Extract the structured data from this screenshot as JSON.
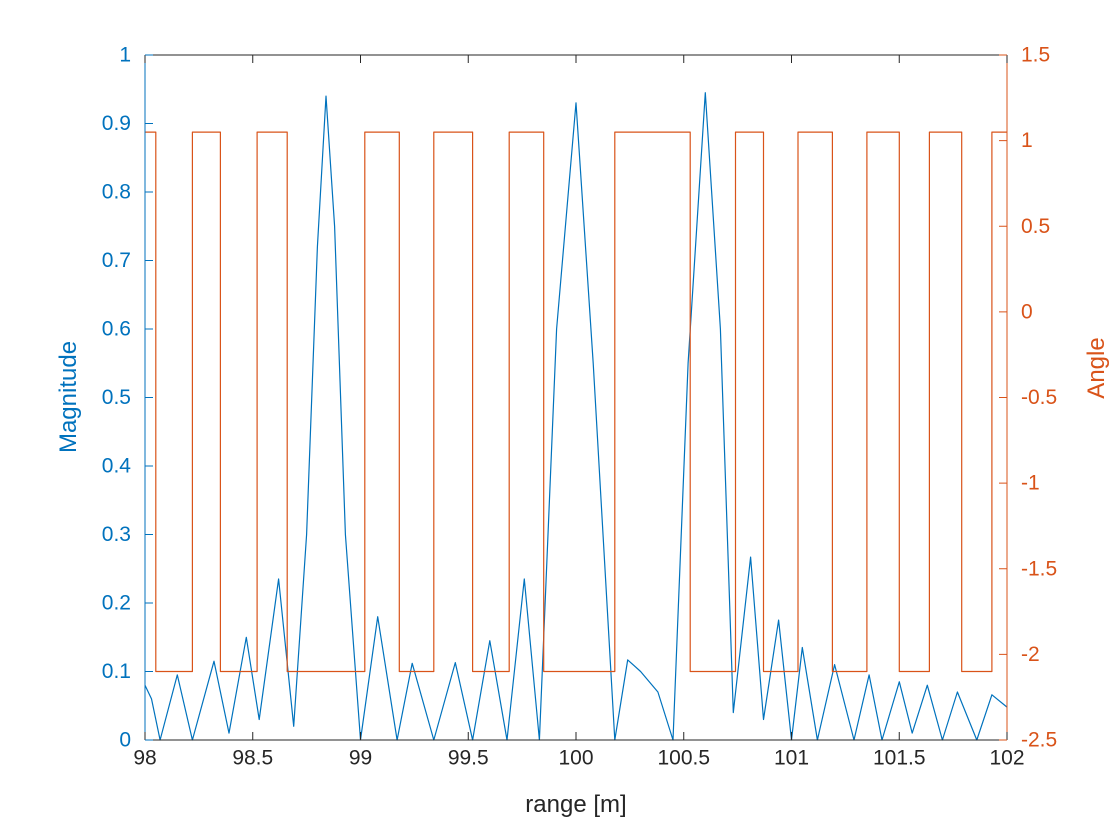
{
  "chart_data": {
    "type": "line",
    "title": "",
    "xlabel": "range [m]",
    "ylabel_left": "Magnitude",
    "ylabel_right": "Angle",
    "xlim": [
      98,
      102
    ],
    "ylim_left": [
      0,
      1
    ],
    "ylim_right": [
      -2.5,
      1.5
    ],
    "grid": false,
    "legend": "none",
    "x_ticks": [
      "98",
      "98.5",
      "99",
      "99.5",
      "100",
      "100.5",
      "101",
      "101.5",
      "102"
    ],
    "y_left_ticks": [
      "0",
      "0.1",
      "0.2",
      "0.3",
      "0.4",
      "0.5",
      "0.6",
      "0.7",
      "0.8",
      "0.9",
      "1"
    ],
    "y_right_ticks": [
      "-2.5",
      "-2",
      "-1.5",
      "-1",
      "-0.5",
      "0",
      "0.5",
      "1",
      "1.5"
    ],
    "colors": {
      "magnitude": "#0072BD",
      "angle": "#D95319",
      "axis": "#262626"
    },
    "series": [
      {
        "axis": "left",
        "color": "#0072BD",
        "x": [
          98.0,
          98.03,
          98.07,
          98.15,
          98.22,
          98.32,
          98.39,
          98.47,
          98.53,
          98.62,
          98.69,
          98.75,
          98.8,
          98.84,
          98.88,
          98.93,
          99.0,
          99.08,
          99.17,
          99.24,
          99.34,
          99.44,
          99.52,
          99.6,
          99.68,
          99.76,
          99.83,
          99.91,
          100.0,
          100.08,
          100.18,
          100.24,
          100.3,
          100.38,
          100.45,
          100.52,
          100.6,
          100.67,
          100.73,
          100.81,
          100.87,
          100.94,
          101.0,
          101.05,
          101.12,
          101.2,
          101.29,
          101.36,
          101.42,
          101.5,
          101.56,
          101.63,
          101.7,
          101.77,
          101.86,
          101.93,
          102.0
        ],
        "y": [
          0.08,
          0.06,
          0.0,
          0.095,
          0.0,
          0.115,
          0.01,
          0.15,
          0.03,
          0.235,
          0.02,
          0.3,
          0.72,
          0.94,
          0.75,
          0.3,
          0.0,
          0.18,
          0.0,
          0.112,
          0.0,
          0.113,
          0.0,
          0.145,
          0.0,
          0.235,
          0.0,
          0.6,
          0.93,
          0.55,
          0.0,
          0.117,
          0.1,
          0.07,
          0.0,
          0.55,
          0.945,
          0.6,
          0.04,
          0.267,
          0.03,
          0.175,
          0.0,
          0.135,
          0.0,
          0.11,
          0.0,
          0.095,
          0.0,
          0.085,
          0.01,
          0.08,
          0.0,
          0.07,
          0.0,
          0.066,
          0.048
        ]
      },
      {
        "axis": "right",
        "color": "#D95319",
        "x": [
          98.0,
          98.05,
          98.05,
          98.22,
          98.22,
          98.35,
          98.35,
          98.52,
          98.52,
          98.66,
          98.66,
          99.02,
          99.02,
          99.18,
          99.18,
          99.34,
          99.34,
          99.52,
          99.52,
          99.69,
          99.69,
          99.85,
          99.85,
          100.18,
          100.18,
          100.53,
          100.53,
          100.74,
          100.74,
          100.87,
          100.87,
          101.03,
          101.03,
          101.19,
          101.19,
          101.35,
          101.35,
          101.5,
          101.5,
          101.64,
          101.64,
          101.79,
          101.79,
          101.93,
          101.93,
          102.0
        ],
        "y": [
          1.05,
          1.05,
          -2.1,
          -2.1,
          1.05,
          1.05,
          -2.1,
          -2.1,
          1.05,
          1.05,
          -2.1,
          -2.1,
          1.05,
          1.05,
          -2.1,
          -2.1,
          1.05,
          1.05,
          -2.1,
          -2.1,
          1.05,
          1.05,
          -2.1,
          -2.1,
          1.05,
          1.05,
          -2.1,
          -2.1,
          1.05,
          1.05,
          -2.1,
          -2.1,
          1.05,
          1.05,
          -2.1,
          -2.1,
          1.05,
          1.05,
          -2.1,
          -2.1,
          1.05,
          1.05,
          -2.1,
          -2.1,
          1.05,
          1.05
        ]
      }
    ]
  }
}
